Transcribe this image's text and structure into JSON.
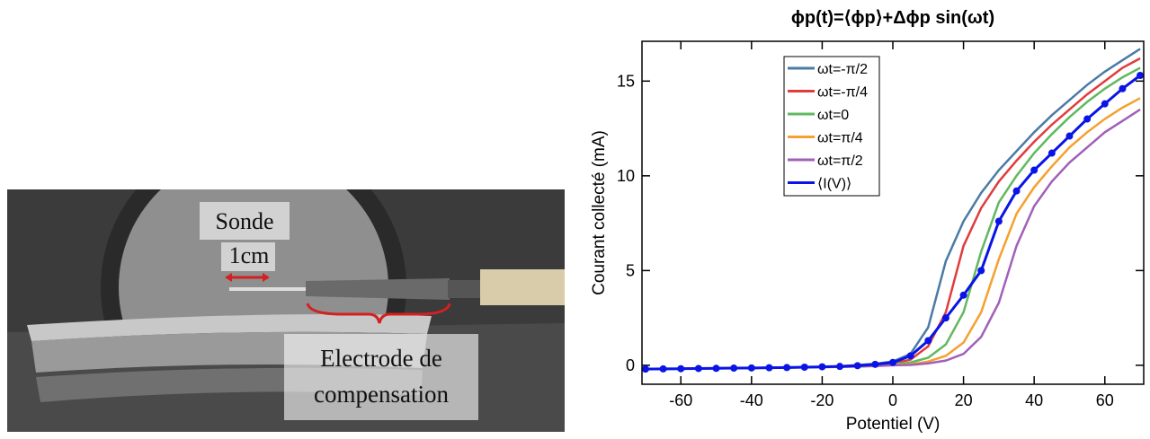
{
  "photo": {
    "labels": {
      "probe": "Sonde",
      "scale": "1cm",
      "electrode": [
        "Electrode de",
        "compensation"
      ]
    }
  },
  "chart_data": {
    "type": "line",
    "title": "ϕp(t)=⟨ϕp⟩+Δϕp sin(ωt)",
    "x_label": "Potentiel (V)",
    "y_label": "Courant collecté (mA)",
    "xlim": [
      -71,
      71
    ],
    "ylim": [
      -1,
      17.1
    ],
    "xticks": [
      -60,
      -40,
      -20,
      0,
      20,
      40,
      60
    ],
    "yticks": [
      0,
      5,
      10,
      15
    ],
    "legend": "upper-left",
    "x": [
      -70,
      -65,
      -60,
      -55,
      -50,
      -45,
      -40,
      -35,
      -30,
      -25,
      -20,
      -15,
      -10,
      -5,
      0,
      5,
      10,
      15,
      20,
      25,
      30,
      35,
      40,
      45,
      50,
      55,
      60,
      65,
      70
    ],
    "series": [
      {
        "name": "ωt=-π/2",
        "color": "#4a7ba6",
        "values": [
          -0.2,
          -0.19,
          -0.18,
          -0.17,
          -0.16,
          -0.15,
          -0.14,
          -0.13,
          -0.12,
          -0.1,
          -0.08,
          -0.05,
          0.02,
          0.08,
          0.2,
          0.6,
          2,
          5.5,
          7.6,
          9.1,
          10.3,
          11.3,
          12.3,
          13.2,
          14,
          14.8,
          15.5,
          16.1,
          16.7
        ]
      },
      {
        "name": "ωt=-π/4",
        "color": "#e03c3c",
        "values": [
          -0.2,
          -0.19,
          -0.18,
          -0.17,
          -0.16,
          -0.15,
          -0.14,
          -0.13,
          -0.12,
          -0.1,
          -0.08,
          -0.06,
          -0.02,
          0.03,
          0.1,
          0.3,
          1,
          2.8,
          6.3,
          8.3,
          9.7,
          10.8,
          11.8,
          12.7,
          13.5,
          14.3,
          15,
          15.7,
          16.2
        ]
      },
      {
        "name": "ωt=0",
        "color": "#60b860",
        "values": [
          -0.2,
          -0.19,
          -0.18,
          -0.17,
          -0.16,
          -0.15,
          -0.14,
          -0.13,
          -0.12,
          -0.11,
          -0.09,
          -0.07,
          -0.04,
          0,
          0.05,
          0.15,
          0.4,
          1.1,
          2.8,
          6,
          8.6,
          10,
          11.2,
          12.2,
          13.1,
          13.9,
          14.6,
          15.2,
          15.7
        ]
      },
      {
        "name": "ωt=π/4",
        "color": "#f5a030",
        "values": [
          -0.2,
          -0.19,
          -0.18,
          -0.17,
          -0.16,
          -0.15,
          -0.14,
          -0.13,
          -0.12,
          -0.11,
          -0.1,
          -0.08,
          -0.06,
          -0.02,
          0.02,
          0.05,
          0.2,
          0.5,
          1.2,
          2.8,
          5.6,
          8,
          9.4,
          10.5,
          11.5,
          12.3,
          13,
          13.6,
          14.1
        ]
      },
      {
        "name": "ωt=π/2",
        "color": "#a060b8",
        "values": [
          -0.2,
          -0.19,
          -0.18,
          -0.17,
          -0.16,
          -0.15,
          -0.14,
          -0.13,
          -0.12,
          -0.11,
          -0.1,
          -0.09,
          -0.07,
          -0.04,
          0,
          0.02,
          0.1,
          0.25,
          0.6,
          1.5,
          3.3,
          6.3,
          8.4,
          9.7,
          10.7,
          11.5,
          12.3,
          12.9,
          13.5
        ]
      },
      {
        "name": "⟨I(V)⟩",
        "color": "#0a14e6",
        "marker": "o",
        "values": [
          -0.2,
          -0.19,
          -0.18,
          -0.17,
          -0.16,
          -0.15,
          -0.14,
          -0.13,
          -0.12,
          -0.1,
          -0.08,
          -0.06,
          -0.02,
          0.05,
          0.15,
          0.5,
          1.3,
          2.5,
          3.7,
          5,
          7.6,
          9.2,
          10.3,
          11.2,
          12.1,
          13,
          13.8,
          14.6,
          15.3
        ]
      }
    ]
  }
}
